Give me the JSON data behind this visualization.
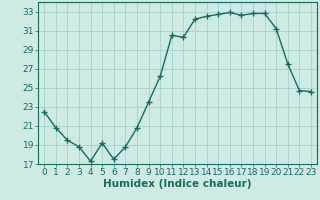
{
  "x": [
    0,
    1,
    2,
    3,
    4,
    5,
    6,
    7,
    8,
    9,
    10,
    11,
    12,
    13,
    14,
    15,
    16,
    17,
    18,
    19,
    20,
    21,
    22,
    23
  ],
  "y": [
    22.5,
    20.8,
    19.5,
    18.8,
    17.3,
    19.2,
    17.5,
    18.8,
    20.8,
    23.5,
    26.2,
    30.5,
    30.3,
    32.2,
    32.5,
    32.7,
    32.9,
    32.6,
    32.8,
    32.8,
    31.2,
    27.5,
    24.7,
    24.6
  ],
  "line_color": "#1a6b5a",
  "marker": "+",
  "markersize": 4,
  "linewidth": 1.0,
  "markeredgewidth": 1.0,
  "xlabel": "Humidex (Indice chaleur)",
  "ylabel": "",
  "xlim": [
    -0.5,
    23.5
  ],
  "ylim": [
    17,
    34
  ],
  "yticks": [
    17,
    19,
    21,
    23,
    25,
    27,
    29,
    31,
    33
  ],
  "xticks": [
    0,
    1,
    2,
    3,
    4,
    5,
    6,
    7,
    8,
    9,
    10,
    11,
    12,
    13,
    14,
    15,
    16,
    17,
    18,
    19,
    20,
    21,
    22,
    23
  ],
  "bg_color": "#ceeae7",
  "grid_color": "#aed4d0",
  "tick_label_fontsize": 6.5,
  "xlabel_fontsize": 7.5
}
